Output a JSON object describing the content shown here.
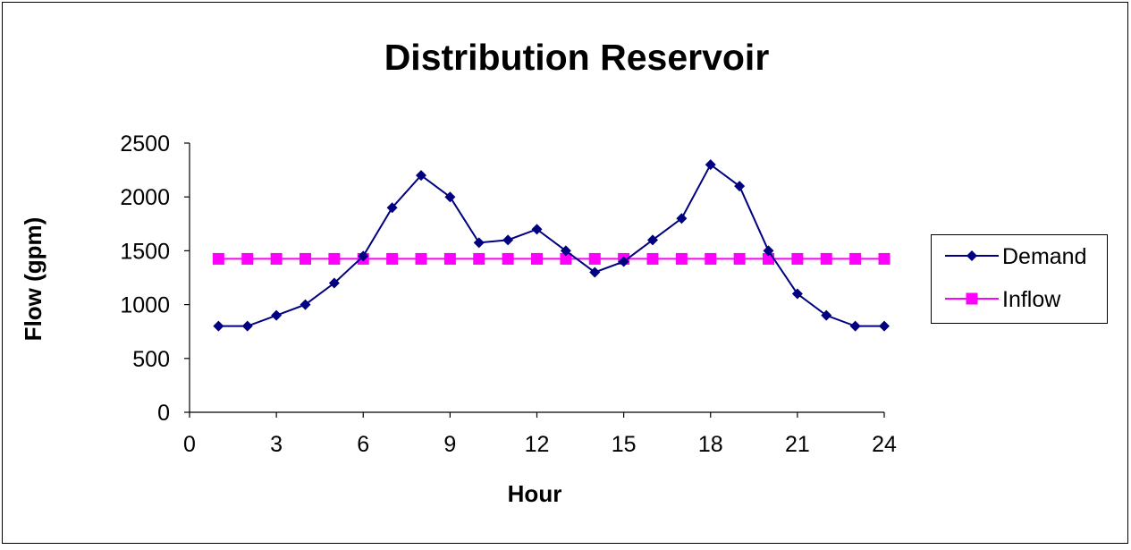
{
  "chart_data": {
    "type": "line",
    "title": "Distribution Reservoir",
    "xlabel": "Hour",
    "ylabel": "Flow (gpm)",
    "xlim": [
      0,
      24
    ],
    "ylim": [
      0,
      2500
    ],
    "x_ticks": [
      0,
      3,
      6,
      9,
      12,
      15,
      18,
      21,
      24
    ],
    "y_ticks": [
      0,
      500,
      1000,
      1500,
      2000,
      2500
    ],
    "grid": false,
    "legend_position": "right",
    "x": [
      1,
      2,
      3,
      4,
      5,
      6,
      7,
      8,
      9,
      10,
      11,
      12,
      13,
      14,
      15,
      16,
      17,
      18,
      19,
      20,
      21,
      22,
      23,
      24
    ],
    "series": [
      {
        "name": "Demand",
        "color": "#000080",
        "marker": "diamond",
        "values": [
          800,
          800,
          900,
          1000,
          1200,
          1450,
          1900,
          2200,
          2000,
          1575,
          1600,
          1700,
          1500,
          1300,
          1400,
          1600,
          1800,
          2300,
          2100,
          1500,
          1100,
          900,
          800,
          800
        ]
      },
      {
        "name": "Inflow",
        "color": "#FF00FF",
        "marker": "square",
        "values": [
          1425,
          1425,
          1425,
          1425,
          1425,
          1425,
          1425,
          1425,
          1425,
          1425,
          1425,
          1425,
          1425,
          1425,
          1425,
          1425,
          1425,
          1425,
          1425,
          1425,
          1425,
          1425,
          1425,
          1425
        ]
      }
    ]
  }
}
